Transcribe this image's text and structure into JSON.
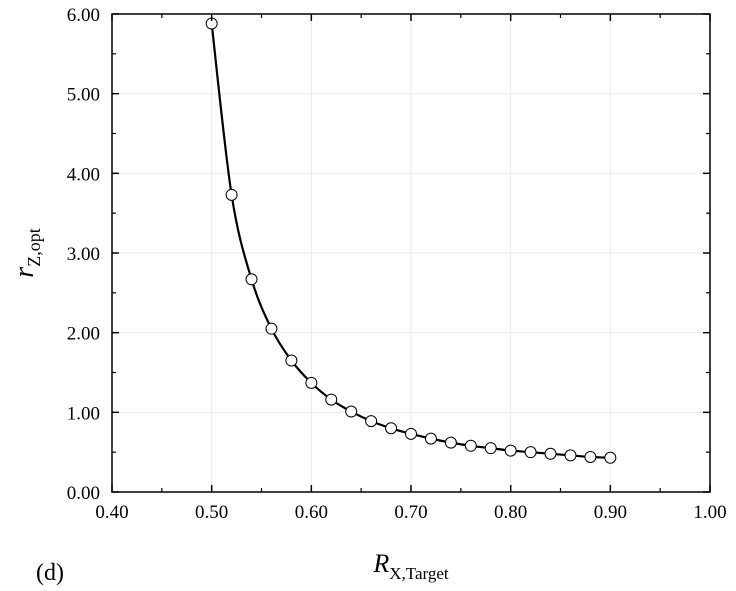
{
  "panel_label": "(d)",
  "chart_data": {
    "type": "line",
    "xlabel_main": "R",
    "xlabel_sub": "X,Target",
    "ylabel_main": "r",
    "ylabel_sub": "Z,opt",
    "xlim": [
      0.4,
      1.0
    ],
    "ylim": [
      0.0,
      6.0
    ],
    "xticks": [
      "0.40",
      "0.50",
      "0.60",
      "0.70",
      "0.80",
      "0.90",
      "1.00"
    ],
    "yticks": [
      "0.00",
      "1.00",
      "2.00",
      "3.00",
      "4.00",
      "5.00",
      "6.00"
    ],
    "grid": true,
    "legend": "none",
    "colors": {
      "line": "#000000",
      "marker_fill": "#ffffff",
      "marker_stroke": "#000000"
    },
    "series": [
      {
        "x": [
          0.5,
          0.52,
          0.54,
          0.56,
          0.58,
          0.6,
          0.62,
          0.64,
          0.66,
          0.68,
          0.7,
          0.72,
          0.74,
          0.76,
          0.78,
          0.8,
          0.82,
          0.84,
          0.86,
          0.88,
          0.9
        ],
        "y": [
          5.88,
          3.73,
          2.67,
          2.05,
          1.65,
          1.37,
          1.16,
          1.01,
          0.89,
          0.8,
          0.73,
          0.67,
          0.62,
          0.58,
          0.55,
          0.52,
          0.5,
          0.48,
          0.46,
          0.44,
          0.43
        ]
      }
    ]
  }
}
